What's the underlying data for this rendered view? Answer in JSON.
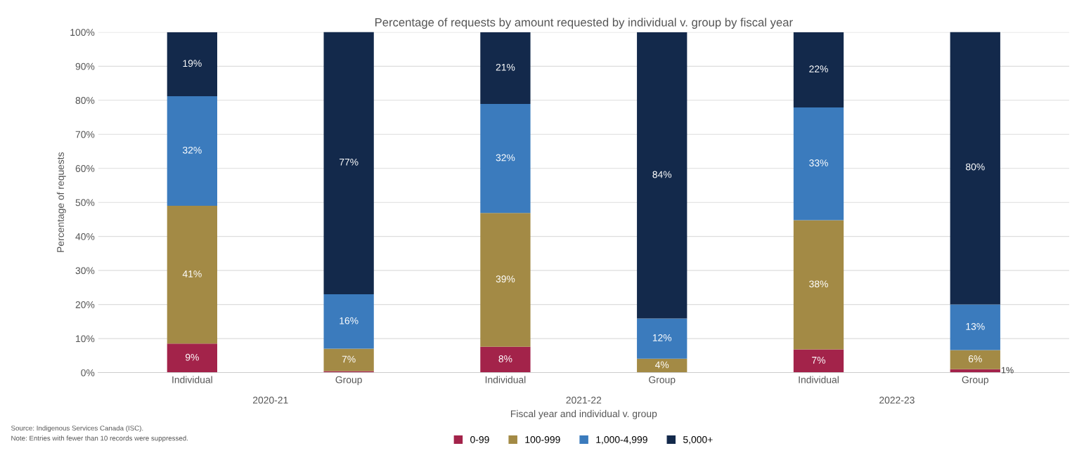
{
  "chart_data": {
    "type": "bar",
    "stacked": true,
    "title": "Percentage of requests by amount requested by individual v. group by fiscal year",
    "xlabel": "Fiscal year and individual v. group",
    "ylabel": "Percentage of requests",
    "categories": [
      "Individual",
      "Group",
      "Individual",
      "Group",
      "Individual",
      "Group"
    ],
    "series": [
      {
        "name": "0-99",
        "color": "#a3234a",
        "values": [
          8.5,
          0.4,
          7.6,
          0,
          6.8,
          1
        ],
        "value_labels": [
          "9%",
          null,
          "8%",
          null,
          "7%",
          "1%"
        ]
      },
      {
        "name": "100-999",
        "color": "#a38a45",
        "values": [
          40.5,
          6.6,
          39.3,
          4.1,
          38,
          5.6
        ],
        "value_labels": [
          "41%",
          "7%",
          "39%",
          "4%",
          "38%",
          "6%"
        ]
      },
      {
        "name": "1,000-4,999",
        "color": "#3b7bbd",
        "values": [
          32.2,
          16,
          32,
          11.8,
          33.1,
          13.4
        ],
        "value_labels": [
          "32%",
          "16%",
          "32%",
          "12%",
          "33%",
          "13%"
        ]
      },
      {
        "name": "5,000+",
        "color": "#13294b",
        "values": [
          18.8,
          77.2,
          21.1,
          84.1,
          22.1,
          80.4
        ],
        "value_labels": [
          "19%",
          "77%",
          "21%",
          "84%",
          "22%",
          "80%"
        ]
      }
    ],
    "ylim": [
      0,
      100
    ],
    "yticks": [
      {
        "value": 0,
        "label": "0%"
      },
      {
        "value": 10,
        "label": "10%"
      },
      {
        "value": 20,
        "label": "20%"
      },
      {
        "value": 30,
        "label": "30%"
      },
      {
        "value": 40,
        "label": "40%"
      },
      {
        "value": 50,
        "label": "50%"
      },
      {
        "value": 60,
        "label": "60%"
      },
      {
        "value": 70,
        "label": "70%"
      },
      {
        "value": 80,
        "label": "80%"
      },
      {
        "value": 90,
        "label": "90%"
      },
      {
        "value": 100,
        "label": "100%"
      }
    ],
    "grid": "y",
    "legend": "bottom",
    "annotations": [
      "2020-21",
      "2021-22",
      "2022-23",
      "Source: Indigenous Services Canada (ISC).",
      "Note: Entries with fewer than 10 records were suppressed."
    ]
  }
}
